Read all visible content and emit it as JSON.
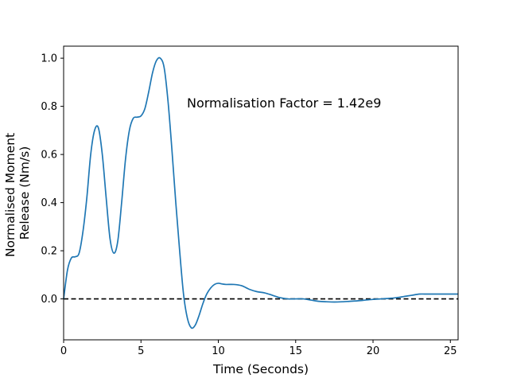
{
  "chart_data": {
    "type": "line",
    "xlabel": "Time (Seconds)",
    "ylabel_lines": [
      "Normalised Moment",
      "Release (Nm/s)"
    ],
    "annotation": "Normalisation Factor = 1.42e9",
    "xlim": [
      0,
      25.5
    ],
    "ylim": [
      -0.17,
      1.05
    ],
    "xticks": [
      0,
      5,
      10,
      15,
      20,
      25
    ],
    "yticks": [
      0.0,
      0.2,
      0.4,
      0.6,
      0.8,
      1.0
    ],
    "xtick_labels": [
      "0",
      "5",
      "10",
      "15",
      "20",
      "25"
    ],
    "ytick_labels": [
      "0.0",
      "0.2",
      "0.4",
      "0.6",
      "0.8",
      "1.0"
    ],
    "grid": false,
    "reference_line": {
      "y": 0,
      "style": "dashed",
      "color": "#000000"
    },
    "series": [
      {
        "color": "#1f77b4",
        "x": [
          0,
          0.25,
          0.5,
          0.75,
          1.0,
          1.25,
          1.5,
          1.75,
          2.0,
          2.25,
          2.5,
          2.75,
          3.0,
          3.25,
          3.5,
          3.75,
          4.0,
          4.25,
          4.5,
          4.75,
          5.0,
          5.25,
          5.5,
          5.75,
          6.0,
          6.25,
          6.5,
          6.75,
          7.0,
          7.25,
          7.5,
          7.75,
          8.0,
          8.25,
          8.5,
          8.75,
          9.0,
          9.25,
          9.5,
          9.75,
          10.0,
          10.25,
          10.5,
          11.0,
          11.5,
          12.0,
          12.5,
          13.0,
          13.5,
          14.0,
          14.5,
          15.0,
          15.5,
          16.0,
          16.5,
          17.0,
          17.5,
          18.0,
          18.5,
          19.0,
          19.5,
          20.0,
          20.5,
          21.0,
          21.5,
          22.0,
          22.5,
          23.0,
          23.5,
          24.0,
          24.5,
          25.0,
          25.5
        ],
        "y": [
          0.0,
          0.12,
          0.17,
          0.175,
          0.19,
          0.28,
          0.42,
          0.6,
          0.7,
          0.71,
          0.6,
          0.42,
          0.25,
          0.19,
          0.24,
          0.4,
          0.58,
          0.7,
          0.75,
          0.755,
          0.76,
          0.79,
          0.86,
          0.94,
          0.99,
          1.0,
          0.96,
          0.82,
          0.62,
          0.4,
          0.2,
          0.02,
          -0.08,
          -0.12,
          -0.11,
          -0.07,
          -0.02,
          0.02,
          0.045,
          0.06,
          0.065,
          0.062,
          0.06,
          0.06,
          0.055,
          0.04,
          0.03,
          0.025,
          0.015,
          0.005,
          0.0,
          0.0,
          0.0,
          -0.005,
          -0.01,
          -0.012,
          -0.013,
          -0.012,
          -0.01,
          -0.008,
          -0.005,
          -0.002,
          0.0,
          0.002,
          0.005,
          0.01,
          0.015,
          0.02,
          0.02,
          0.02,
          0.02,
          0.02,
          0.02
        ]
      }
    ]
  }
}
